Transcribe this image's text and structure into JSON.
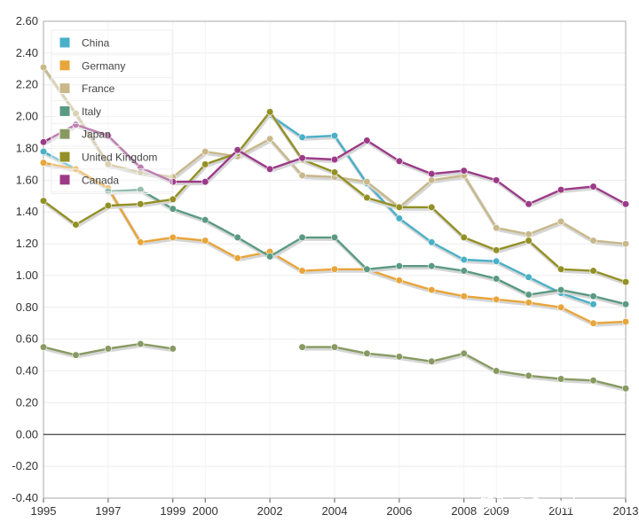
{
  "chart_data": {
    "type": "line",
    "title": "",
    "xlabel": "",
    "ylabel": "",
    "x_ticks": [
      "1995",
      "1997",
      "1999",
      "2000",
      "2002",
      "2004",
      "2006",
      "2008",
      "2009",
      "2011",
      "2013"
    ],
    "y_ticks": [
      "2.60",
      "2.40",
      "2.20",
      "2.00",
      "1.80",
      "1.60",
      "1.40",
      "1.20",
      "1.00",
      "0.80",
      "0.60",
      "0.40",
      "0.20",
      "0.00",
      "-0.20",
      "-0.40"
    ],
    "ylim": [
      -0.4,
      2.6
    ],
    "xlim": [
      1995,
      2013
    ],
    "grid": true,
    "legend_position": "top-left",
    "x": [
      1995,
      1996,
      1997,
      1998,
      1999,
      2000,
      2001,
      2002,
      2003,
      2004,
      2005,
      2006,
      2007,
      2008,
      2009,
      2010,
      2011,
      2012,
      2013
    ],
    "series": [
      {
        "name": "China",
        "color": "#4ab0c8",
        "values": [
          1.78,
          1.67,
          null,
          null,
          null,
          null,
          null,
          2.01,
          1.87,
          1.88,
          1.58,
          1.36,
          1.21,
          1.1,
          1.09,
          0.99,
          0.89,
          0.82,
          null
        ]
      },
      {
        "name": "Germany",
        "color": "#e8a53a",
        "values": [
          1.71,
          1.67,
          1.55,
          1.21,
          1.24,
          1.22,
          1.11,
          1.15,
          1.03,
          1.04,
          1.04,
          0.97,
          0.91,
          0.87,
          0.85,
          0.83,
          0.8,
          0.7,
          0.71
        ]
      },
      {
        "name": "France",
        "color": "#c8b88a",
        "values": [
          2.31,
          2.02,
          1.7,
          1.65,
          1.62,
          1.78,
          1.75,
          1.86,
          1.63,
          1.62,
          1.59,
          1.43,
          1.6,
          1.63,
          1.3,
          1.26,
          1.34,
          1.22,
          1.2
        ]
      },
      {
        "name": "Italy",
        "color": "#5a9a82",
        "values": [
          null,
          null,
          1.53,
          1.54,
          1.42,
          1.35,
          1.24,
          1.12,
          1.24,
          1.24,
          1.04,
          1.06,
          1.06,
          1.03,
          0.98,
          0.88,
          0.91,
          0.87,
          0.82
        ]
      },
      {
        "name": "Japan",
        "color": "#889a62",
        "values": [
          0.55,
          0.5,
          0.54,
          0.57,
          0.54,
          null,
          null,
          null,
          0.55,
          0.55,
          0.51,
          0.49,
          0.46,
          0.51,
          0.4,
          0.37,
          0.35,
          0.34,
          0.29
        ]
      },
      {
        "name": "United Kingdom",
        "color": "#939025",
        "values": [
          1.47,
          1.32,
          1.44,
          1.45,
          1.48,
          1.7,
          1.77,
          2.03,
          1.73,
          1.65,
          1.49,
          1.43,
          1.43,
          1.24,
          1.16,
          1.22,
          1.04,
          1.03,
          0.96
        ]
      },
      {
        "name": "Canada",
        "color": "#9c3a88",
        "values": [
          1.84,
          1.95,
          1.88,
          1.68,
          1.59,
          1.59,
          1.79,
          1.67,
          1.74,
          1.73,
          1.85,
          1.72,
          1.64,
          1.66,
          1.6,
          1.45,
          1.54,
          1.56,
          1.45
        ]
      }
    ]
  },
  "watermark": "知乎 @Gawaine"
}
